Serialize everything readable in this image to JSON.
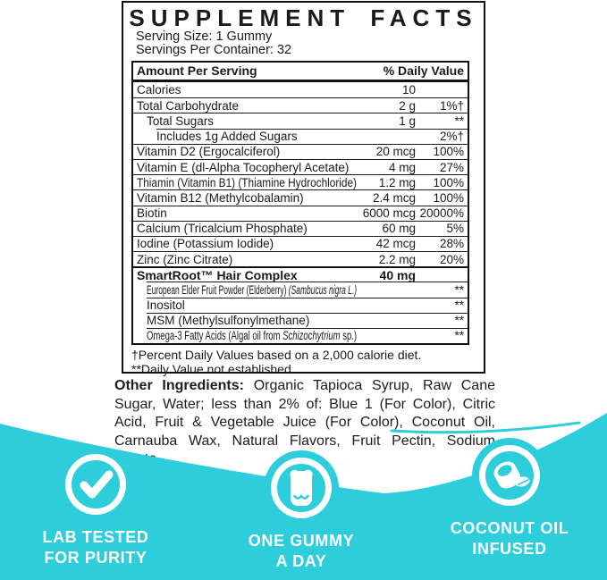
{
  "colors": {
    "accent": "#2dcddc",
    "text": "#1a1a1a",
    "badge_text": "#ffffff"
  },
  "label": {
    "title": "SUPPLEMENT FACTS",
    "serving_size": "Serving Size: 1 Gummy",
    "servings_per_container": "Servings Per Container: 32",
    "table": {
      "header": {
        "left": "Amount Per Serving",
        "right": "% Daily Value"
      },
      "rows": [
        {
          "name": [
            {
              "t": "Calories"
            }
          ],
          "amount": "10",
          "dv": "",
          "indent": 0,
          "sep": "none"
        },
        {
          "name": [
            {
              "t": "Total Carbohydrate"
            }
          ],
          "amount": "2 g",
          "dv": "1%†",
          "indent": 0,
          "sep": "full"
        },
        {
          "name": [
            {
              "t": "Total Sugars"
            }
          ],
          "amount": "1 g",
          "dv": "**",
          "indent": 1,
          "sep": "full"
        },
        {
          "name": [
            {
              "t": "Includes 1g Added Sugars"
            }
          ],
          "amount": "",
          "dv": "2%†",
          "indent": 2,
          "sep": "inset"
        },
        {
          "name": [
            {
              "t": "Vitamin D2 (Ergocalciferol)"
            }
          ],
          "amount": "20 mcg",
          "dv": "100%",
          "indent": 0,
          "sep": "full"
        },
        {
          "name": [
            {
              "t": "Vitamin E (dl-Alpha Tocopheryl Acetate)"
            }
          ],
          "amount": "4 mg",
          "dv": "27%",
          "indent": 0,
          "sep": "full"
        },
        {
          "name": [
            {
              "t": "Thiamin (Vitamin B1) (Thiamine Hydrochloride)"
            }
          ],
          "amount": "1.2 mg",
          "dv": "100%",
          "indent": 0,
          "sep": "full"
        },
        {
          "name": [
            {
              "t": "Vitamin B12 (Methylcobalamin)"
            }
          ],
          "amount": "2.4 mcg",
          "dv": "100%",
          "indent": 0,
          "sep": "full"
        },
        {
          "name": [
            {
              "t": "Biotin"
            }
          ],
          "amount": "6000 mcg",
          "dv": "20000%",
          "indent": 0,
          "sep": "full"
        },
        {
          "name": [
            {
              "t": "Calcium (Tricalcium Phosphate)"
            }
          ],
          "amount": "60 mg",
          "dv": "5%",
          "indent": 0,
          "sep": "full"
        },
        {
          "name": [
            {
              "t": "Iodine (Potassium Iodide)"
            }
          ],
          "amount": "42 mcg",
          "dv": "28%",
          "indent": 0,
          "sep": "full"
        },
        {
          "name": [
            {
              "t": "Zinc (Zinc Citrate)"
            }
          ],
          "amount": "2.2 mg",
          "dv": "20%",
          "indent": 0,
          "sep": "full"
        },
        {
          "name": [
            {
              "t": "SmartRoot™ Hair Complex"
            }
          ],
          "amount": "40 mg",
          "dv": "",
          "indent": 0,
          "sep": "thick",
          "bold": true
        },
        {
          "name": [
            {
              "t": "European Elder Fruit Powder (Elderberry) "
            },
            {
              "t": "(Sambucus nigra L.)",
              "i": true
            }
          ],
          "amount": "",
          "dv": "**",
          "indent": 1,
          "sep": "inset"
        },
        {
          "name": [
            {
              "t": "Inositol"
            }
          ],
          "amount": "",
          "dv": "**",
          "indent": 1,
          "sep": "inset"
        },
        {
          "name": [
            {
              "t": "MSM (Methylsulfonylmethane)"
            }
          ],
          "amount": "",
          "dv": "**",
          "indent": 1,
          "sep": "inset"
        },
        {
          "name": [
            {
              "t": "Omega-3 Fatty Acids (Algal oil from "
            },
            {
              "t": "Schizochytrium",
              "i": true
            },
            {
              "t": " sp.)"
            }
          ],
          "amount": "",
          "dv": "**",
          "indent": 1,
          "sep": "inset"
        }
      ],
      "footnotes": [
        "†Percent Daily Values based on a 2,000 calorie diet.",
        "**Daily Value not established."
      ]
    }
  },
  "ingredients": {
    "label": "Other Ingredients:",
    "text": " Organic Tapioca Syrup, Raw Cane Sugar, Water; less than 2% of: Blue 1 (For Color), Citric Acid, Fruit & Vegetable Juice (For Color), Coconut Oil, Carnauba Wax, Natural Flavors, Fruit Pectin, Sodium Citrate."
  },
  "badges": [
    {
      "icon": "check-icon",
      "lines": [
        "LAB TESTED",
        "FOR PURITY"
      ]
    },
    {
      "icon": "gummy-bear-icon",
      "lines": [
        "ONE GUMMY",
        "A DAY"
      ]
    },
    {
      "icon": "coconut-icon",
      "lines": [
        "COCONUT OIL",
        "INFUSED"
      ]
    }
  ]
}
